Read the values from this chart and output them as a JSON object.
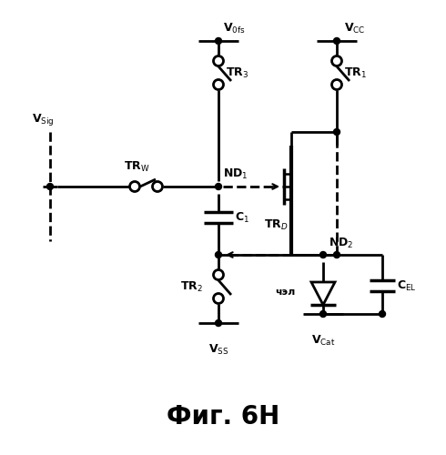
{
  "title": "Фиг. 6Н",
  "background_color": "#ffffff",
  "line_color": "#000000",
  "figsize": [
    4.9,
    5.0
  ],
  "dpi": 100
}
